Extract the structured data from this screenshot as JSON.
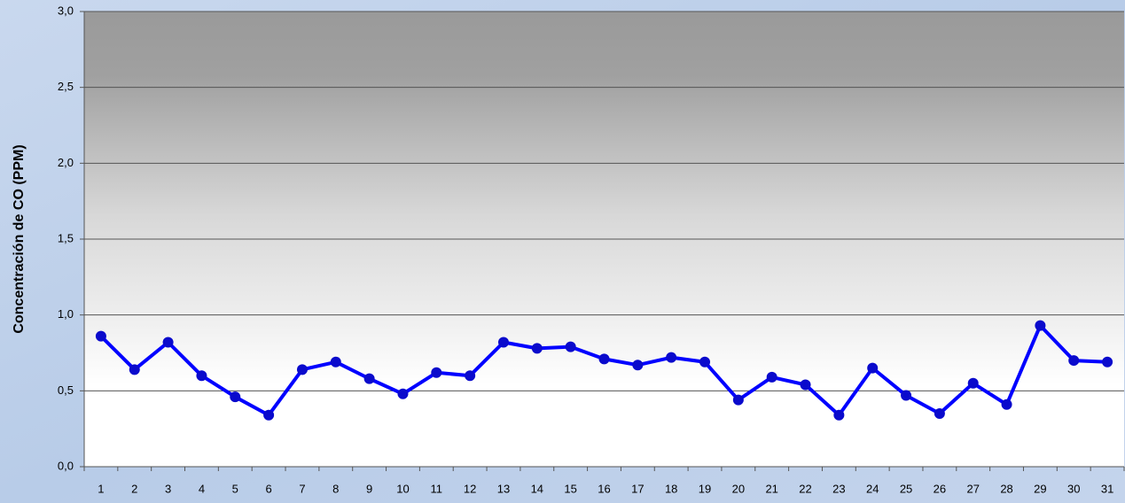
{
  "chart_data": {
    "type": "line",
    "y_label": "Concentración de CO (PPM)",
    "categories": [
      "1",
      "2",
      "3",
      "4",
      "5",
      "6",
      "7",
      "8",
      "9",
      "10",
      "11",
      "12",
      "13",
      "14",
      "15",
      "16",
      "17",
      "18",
      "19",
      "20",
      "21",
      "22",
      "23",
      "24",
      "25",
      "26",
      "27",
      "28",
      "29",
      "30",
      "31"
    ],
    "series": [
      {
        "color": "#0000ff",
        "marker_color": "#0a0acc",
        "values": [
          0.86,
          0.64,
          0.82,
          0.6,
          0.46,
          0.34,
          0.64,
          0.69,
          0.58,
          0.48,
          0.62,
          0.6,
          0.82,
          0.78,
          0.79,
          0.71,
          0.67,
          0.72,
          0.69,
          0.44,
          0.59,
          0.54,
          0.34,
          0.65,
          0.47,
          0.35,
          0.55,
          0.41,
          0.93,
          0.7,
          0.69
        ]
      }
    ],
    "ylim": [
      0,
      3
    ],
    "yticks": [
      {
        "value": 0,
        "label": "0,0"
      },
      {
        "value": 0.5,
        "label": "0,5"
      },
      {
        "value": 1,
        "label": "1,0"
      },
      {
        "value": 1.5,
        "label": "1,5"
      },
      {
        "value": 2,
        "label": "2,0"
      },
      {
        "value": 2.5,
        "label": "2,5"
      },
      {
        "value": 3,
        "label": "3,0"
      }
    ],
    "grid": true
  }
}
